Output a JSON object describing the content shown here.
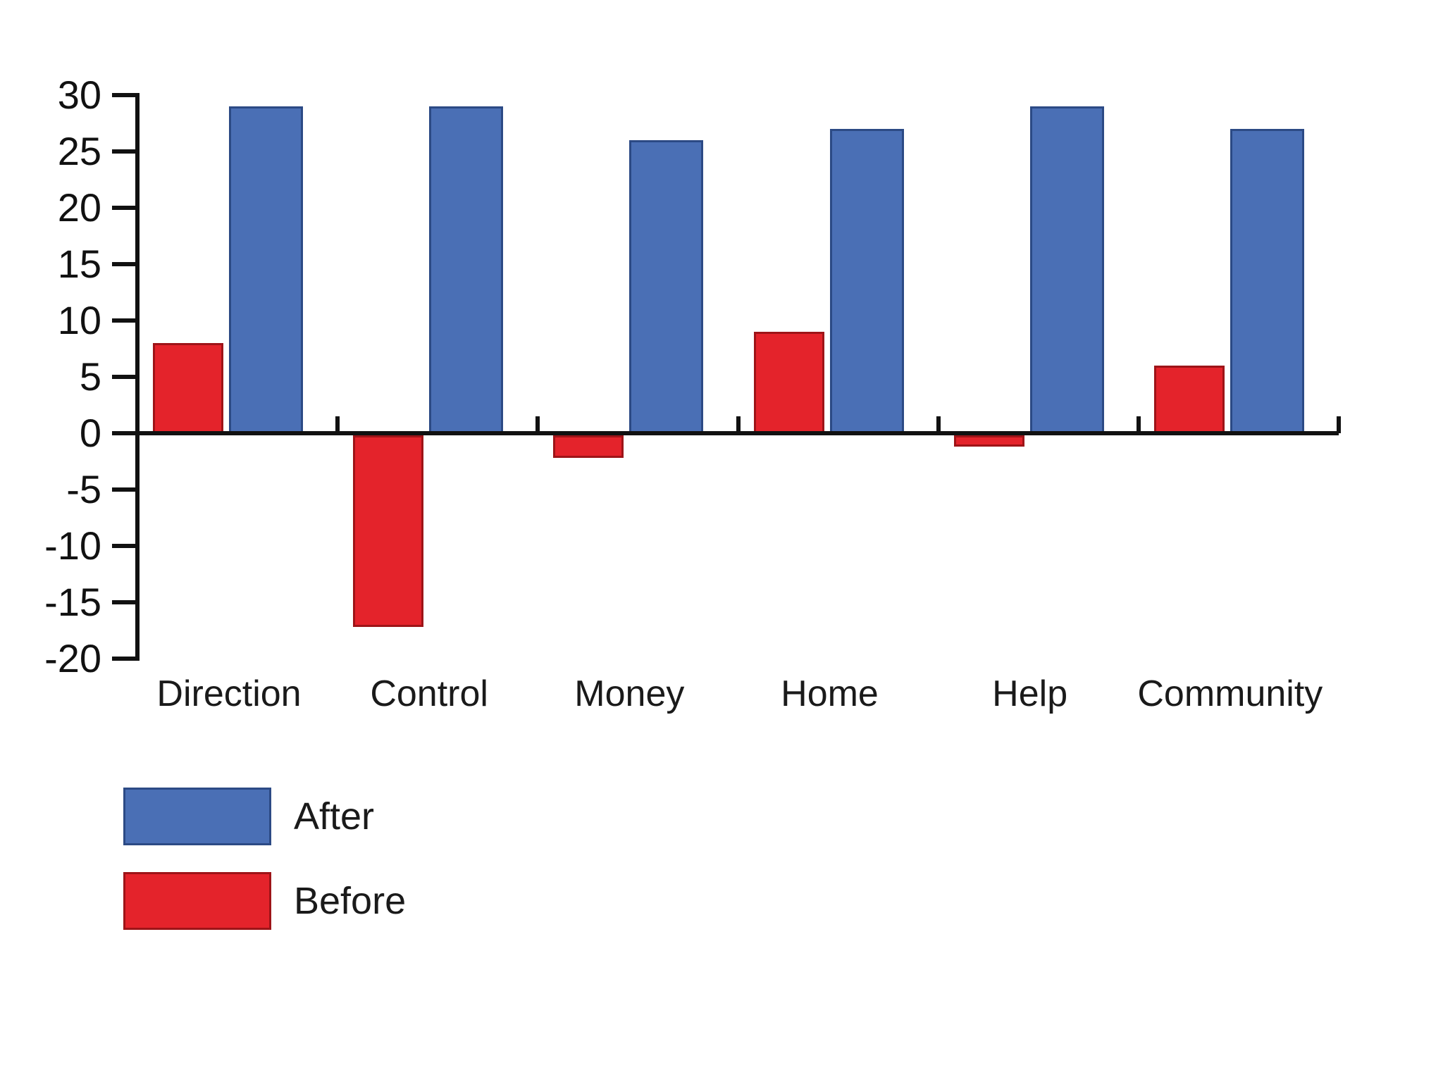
{
  "chart_data": {
    "type": "bar",
    "categories": [
      "Direction",
      "Control",
      "Money",
      "Home",
      "Help",
      "Community"
    ],
    "series": [
      {
        "name": "Before",
        "color": "#e4232b",
        "border_color": "#9e1418",
        "values": [
          8,
          -17,
          -2,
          9,
          -1,
          6
        ]
      },
      {
        "name": "After",
        "color": "#4a6fb5",
        "border_color": "#2c4a85",
        "values": [
          29,
          29,
          26,
          27,
          29,
          27
        ]
      }
    ],
    "title": "",
    "xlabel": "",
    "ylabel": "",
    "ylim": [
      -20,
      30
    ],
    "ytick_step": 5,
    "ytick_labels": [
      "30",
      "25",
      "20",
      "15",
      "10",
      "5",
      "0",
      "-5",
      "-10",
      "-15",
      "-20"
    ],
    "grid": false,
    "axis_color": "#111111",
    "legend_position": "bottom-left"
  },
  "legend": {
    "items": [
      {
        "label": "After",
        "color": "#4a6fb5",
        "border_color": "#2c4a85"
      },
      {
        "label": "Before",
        "color": "#e4232b",
        "border_color": "#9e1418"
      }
    ]
  }
}
